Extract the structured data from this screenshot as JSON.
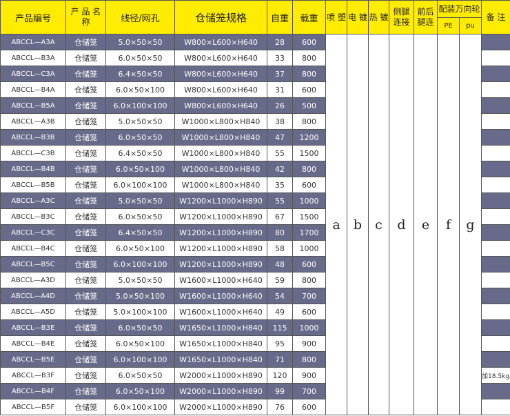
{
  "headers": {
    "code": "产品编号",
    "name": "产 品 名 称",
    "wire": "线径/网孔",
    "spec": "仓储笼规格",
    "weight": "自重",
    "load": "载重",
    "spray": "喷 塑",
    "electro": "电 镀",
    "hot": "热 镀",
    "side": "侧腿 连接",
    "front": "前后 腿连",
    "caster": "配装万向轮",
    "pe": "PE",
    "pu": "pu",
    "remark": "备 注"
  },
  "options": [
    "a",
    "b",
    "c",
    "d",
    "e",
    "f",
    "g"
  ],
  "colors": {
    "header": "#ffec00",
    "dark_row": "#676a88"
  },
  "rows": [
    {
      "code": "ABCCL—A3A",
      "name": "仓储笼",
      "wire": "5.0×50×50",
      "spec": "W800×L600×H640",
      "weight": "28",
      "load": "600",
      "remark": ""
    },
    {
      "code": "ABCCL—B3A",
      "name": "仓储笼",
      "wire": "6.0×50×50",
      "spec": "W800×L600×H640",
      "weight": "33",
      "load": "800",
      "remark": ""
    },
    {
      "code": "ABCCL—C3A",
      "name": "仓储笼",
      "wire": "6.4×50×50",
      "spec": "W800×L600×H640",
      "weight": "37",
      "load": "800",
      "remark": ""
    },
    {
      "code": "ABCCL—B4A",
      "name": "仓储笼",
      "wire": "6.0×50×100",
      "spec": "W800×L600×H640",
      "weight": "31",
      "load": "600",
      "remark": ""
    },
    {
      "code": "ABCCL—B5A",
      "name": "仓储笼",
      "wire": "6.0×100×100",
      "spec": "W800×L600×H640",
      "weight": "26",
      "load": "500",
      "remark": ""
    },
    {
      "code": "ABCCL—A3B",
      "name": "仓储笼",
      "wire": "5.0×50×50",
      "spec": "W1000×L800×H840",
      "weight": "38",
      "load": "800",
      "remark": ""
    },
    {
      "code": "ABCCL—B3B",
      "name": "仓储笼",
      "wire": "6.0×50×50",
      "spec": "W1000×L800×H840",
      "weight": "47",
      "load": "1200",
      "remark": ""
    },
    {
      "code": "ABCCL—C3B",
      "name": "仓储笼",
      "wire": "6.4×50×50",
      "spec": "W1000×L800×H840",
      "weight": "55",
      "load": "1500",
      "remark": ""
    },
    {
      "code": "ABCCL—B4B",
      "name": "仓储笼",
      "wire": "6.0×50×100",
      "spec": "W1000×L800×H840",
      "weight": "42",
      "load": "800",
      "remark": ""
    },
    {
      "code": "ABCCL—B5B",
      "name": "仓储笼",
      "wire": "6.0×100×100",
      "spec": "W1000×L800×H840",
      "weight": "35",
      "load": "600",
      "remark": ""
    },
    {
      "code": "ABCCL—A3C",
      "name": "仓储笼",
      "wire": "5.0×50×50",
      "spec": "W1200×L1000×H890",
      "weight": "55",
      "load": "1000",
      "remark": ""
    },
    {
      "code": "ABCCL—B3C",
      "name": "仓储笼",
      "wire": "6.0×50×50",
      "spec": "W1200×L1000×H890",
      "weight": "67",
      "load": "1500",
      "remark": ""
    },
    {
      "code": "ABCCL—C3C",
      "name": "仓储笼",
      "wire": "6.4×50×50",
      "spec": "W1200×L1000×H890",
      "weight": "80",
      "load": "1700",
      "remark": ""
    },
    {
      "code": "ABCCL—B4C",
      "name": "仓储笼",
      "wire": "6.0×50×100",
      "spec": "W1200×L1000×H890",
      "weight": "58",
      "load": "1000",
      "remark": ""
    },
    {
      "code": "ABCCL—B5C",
      "name": "仓储笼",
      "wire": "6.0×100×100",
      "spec": "W1200×L1000×H890",
      "weight": "48",
      "load": "600",
      "remark": ""
    },
    {
      "code": "ABCCL—A3D",
      "name": "仓储笼",
      "wire": "5.0×50×50",
      "spec": "W1600×L1000×H640",
      "weight": "59",
      "load": "800",
      "remark": ""
    },
    {
      "code": "ABCCL—A4D",
      "name": "仓储笼",
      "wire": "5.0×50×100",
      "spec": "W1600×L1000×H640",
      "weight": "54",
      "load": "700",
      "remark": ""
    },
    {
      "code": "ABCCL—A5D",
      "name": "仓储笼",
      "wire": "5.0×100×100",
      "spec": "W1600×L1000×H640",
      "weight": "49",
      "load": "600",
      "remark": ""
    },
    {
      "code": "ABCCL—B3E",
      "name": "仓储笼",
      "wire": "6.0×50×50",
      "spec": "W1650×L1000×H840",
      "weight": "115",
      "load": "1000",
      "remark": ""
    },
    {
      "code": "ABCCL—B4E",
      "name": "仓储笼",
      "wire": "6.0×50×100",
      "spec": "W1650×L1000×H840",
      "weight": "95",
      "load": "900",
      "remark": ""
    },
    {
      "code": "ABCCL—B5E",
      "name": "仓储笼",
      "wire": "6.0×100×100",
      "spec": "W1650×L1000×H840",
      "weight": "71",
      "load": "800",
      "remark": ""
    },
    {
      "code": "ABCCL—B3F",
      "name": "仓储笼",
      "wire": "6.0×50×50",
      "spec": "W2000×L1000×H890",
      "weight": "120",
      "load": "900",
      "remark": "加18.5kg。"
    },
    {
      "code": "ABCCL—B4F",
      "name": "仓储笼",
      "wire": "6.0×50×100",
      "spec": "W2000×L1000×H890",
      "weight": "99",
      "load": "700",
      "remark": ""
    },
    {
      "code": "ABCCL—B5F",
      "name": "仓储笼",
      "wire": "6.0×100×100",
      "spec": "W2000×L1000×H890",
      "weight": "76",
      "load": "600",
      "remark": ""
    }
  ]
}
